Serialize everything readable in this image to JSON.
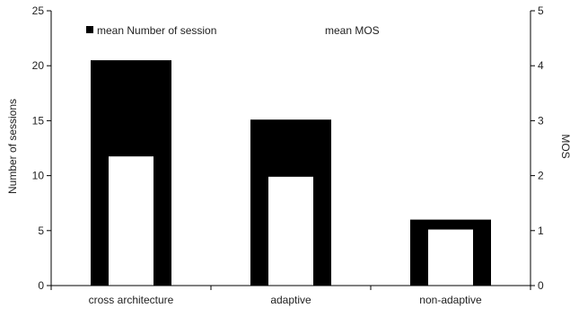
{
  "chart_data": {
    "type": "bar",
    "categories": [
      "cross architecture",
      "adaptive",
      "non-adaptive"
    ],
    "series": [
      {
        "name": "mean Number of session",
        "axis": "left",
        "values": [
          20.5,
          15.1,
          6.0
        ],
        "color": "#000000"
      },
      {
        "name": "mean MOS",
        "axis": "right",
        "values": [
          2.35,
          1.98,
          1.02
        ],
        "color": "#ffffff"
      }
    ],
    "ylabel": "Number of sessions",
    "ylabel_right": "MOS",
    "ylim": [
      0,
      25
    ],
    "ylim_right": [
      0,
      5
    ],
    "yticks": [
      0,
      5,
      10,
      15,
      20,
      25
    ],
    "yticks_right": [
      0,
      1,
      2,
      3,
      4,
      5
    ],
    "grid": false,
    "legend_position": "top-left"
  }
}
